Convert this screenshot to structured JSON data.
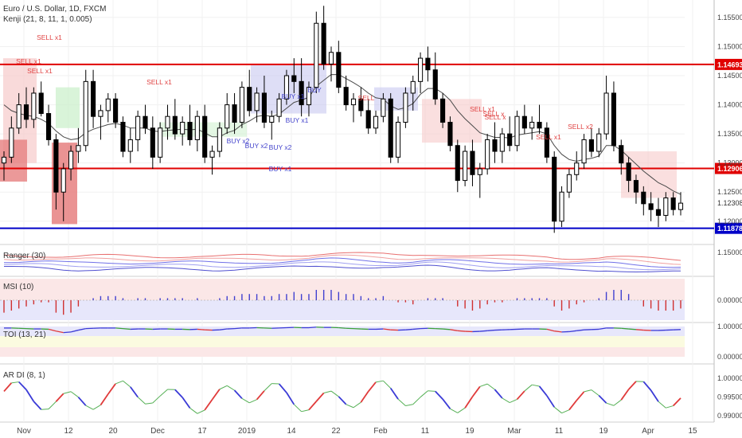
{
  "header": {
    "title": "Euro / U.S. Dollar, 1D, FXCM",
    "indicator": "Kenji (21, 8, 11, 1, 0.005)"
  },
  "panes": {
    "ranger": {
      "label": "Ranger (30)",
      "ticks": [
        "1.15000"
      ]
    },
    "msi": {
      "label": "MSI (10)",
      "ticks": [
        "0.00000"
      ]
    },
    "toi": {
      "label": "TOI (13, 21)",
      "ticks": [
        "1.00000",
        "0.00000"
      ]
    },
    "ardi": {
      "label": "AR DI (8, 1)",
      "ticks": [
        "1.00000",
        "0.99500",
        "0.99000"
      ]
    }
  },
  "colors": {
    "up_candle": "#ffffff",
    "down_candle": "#000000",
    "resistance": "#e00000",
    "support": "#0000c8",
    "price_tag_red": "#e00000",
    "price_tag_blue": "#0000c8",
    "buy": "#4444cc",
    "sell": "#e04444",
    "red_zone": "#f6caca",
    "green_zone": "#c9efc9",
    "blue_zone": "#c8c8f0"
  },
  "chart_data": {
    "type": "candlestick",
    "symbol": "EURUSD",
    "timeframe": "1D",
    "price_axis": {
      "ticks": [
        "1.15500",
        "1.15000",
        "1.14500",
        "1.14000",
        "1.13500",
        "1.13000",
        "1.12500",
        "1.12000"
      ],
      "ylim": [
        1.116,
        1.158
      ]
    },
    "time_axis": [
      "Nov",
      "12",
      "20",
      "Dec",
      "17",
      "2019",
      "14",
      "22",
      "Feb",
      "11",
      "19",
      "Mar",
      "11",
      "19",
      "Apr",
      "15"
    ],
    "levels": [
      {
        "value": 1.14693,
        "label": "1.14693",
        "color": "red"
      },
      {
        "value": 1.12906,
        "label": "1.12906",
        "color": "red"
      },
      {
        "value": 1.11878,
        "label": "1.11878",
        "color": "blue"
      }
    ],
    "last_price": {
      "value": 1.12308,
      "label": "1.12308"
    },
    "signals": [
      {
        "label": "SELL x1",
        "type": "sell"
      },
      {
        "label": "SELL x1",
        "type": "sell"
      },
      {
        "label": "SELL x1",
        "type": "sell"
      },
      {
        "label": "SELL x1",
        "type": "sell"
      },
      {
        "label": "BUY x2",
        "type": "buy"
      },
      {
        "label": "BUY x2",
        "type": "buy"
      },
      {
        "label": "BUY x1",
        "type": "buy"
      },
      {
        "label": "BUY x1",
        "type": "buy"
      },
      {
        "label": "BUY x2",
        "type": "buy"
      },
      {
        "label": "BUY x1",
        "type": "buy"
      },
      {
        "label": "BUY",
        "type": "buy"
      },
      {
        "label": "SELL",
        "type": "sell"
      },
      {
        "label": "SELL x1",
        "type": "sell"
      },
      {
        "label": "SELL x",
        "type": "sell"
      },
      {
        "label": "SELL x",
        "type": "sell"
      },
      {
        "label": "SELL x1",
        "type": "sell"
      },
      {
        "label": "SELL x2",
        "type": "sell"
      }
    ],
    "candles": [
      [
        1.13,
        1.132,
        1.127,
        1.131
      ],
      [
        1.131,
        1.138,
        1.13,
        1.136
      ],
      [
        1.136,
        1.142,
        1.135,
        1.14
      ],
      [
        1.14,
        1.143,
        1.136,
        1.1375
      ],
      [
        1.1375,
        1.143,
        1.136,
        1.142
      ],
      [
        1.142,
        1.144,
        1.138,
        1.1385
      ],
      [
        1.1385,
        1.14,
        1.133,
        1.134
      ],
      [
        1.134,
        1.135,
        1.122,
        1.125
      ],
      [
        1.125,
        1.13,
        1.12,
        1.129
      ],
      [
        1.129,
        1.133,
        1.127,
        1.132
      ],
      [
        1.132,
        1.136,
        1.13,
        1.133
      ],
      [
        1.133,
        1.146,
        1.132,
        1.144
      ],
      [
        1.144,
        1.146,
        1.136,
        1.138
      ],
      [
        1.138,
        1.14,
        1.134,
        1.139
      ],
      [
        1.139,
        1.142,
        1.137,
        1.141
      ],
      [
        1.141,
        1.142,
        1.136,
        1.137
      ],
      [
        1.137,
        1.138,
        1.131,
        1.132
      ],
      [
        1.132,
        1.136,
        1.13,
        1.134
      ],
      [
        1.134,
        1.139,
        1.132,
        1.138
      ],
      [
        1.138,
        1.14,
        1.135,
        1.136
      ],
      [
        1.136,
        1.138,
        1.129,
        1.131
      ],
      [
        1.131,
        1.137,
        1.13,
        1.136
      ],
      [
        1.136,
        1.14,
        1.134,
        1.138
      ],
      [
        1.138,
        1.141,
        1.134,
        1.135
      ],
      [
        1.135,
        1.138,
        1.133,
        1.137
      ],
      [
        1.137,
        1.14,
        1.133,
        1.134
      ],
      [
        1.134,
        1.139,
        1.132,
        1.138
      ],
      [
        1.138,
        1.14,
        1.13,
        1.131
      ],
      [
        1.131,
        1.133,
        1.128,
        1.132
      ],
      [
        1.132,
        1.137,
        1.131,
        1.136
      ],
      [
        1.136,
        1.142,
        1.135,
        1.14
      ],
      [
        1.14,
        1.142,
        1.135,
        1.137
      ],
      [
        1.137,
        1.144,
        1.136,
        1.143
      ],
      [
        1.143,
        1.146,
        1.138,
        1.139
      ],
      [
        1.139,
        1.143,
        1.137,
        1.142
      ],
      [
        1.142,
        1.145,
        1.136,
        1.137
      ],
      [
        1.137,
        1.139,
        1.134,
        1.138
      ],
      [
        1.138,
        1.142,
        1.137,
        1.141
      ],
      [
        1.141,
        1.146,
        1.14,
        1.145
      ],
      [
        1.145,
        1.148,
        1.142,
        1.144
      ],
      [
        1.144,
        1.148,
        1.138,
        1.14
      ],
      [
        1.14,
        1.144,
        1.138,
        1.143
      ],
      [
        1.143,
        1.156,
        1.142,
        1.154
      ],
      [
        1.154,
        1.157,
        1.146,
        1.147
      ],
      [
        1.147,
        1.15,
        1.144,
        1.149
      ],
      [
        1.149,
        1.151,
        1.142,
        1.143
      ],
      [
        1.143,
        1.145,
        1.139,
        1.14
      ],
      [
        1.14,
        1.142,
        1.137,
        1.141
      ],
      [
        1.141,
        1.143,
        1.138,
        1.139
      ],
      [
        1.139,
        1.141,
        1.135,
        1.136
      ],
      [
        1.136,
        1.139,
        1.135,
        1.138
      ],
      [
        1.138,
        1.142,
        1.137,
        1.141
      ],
      [
        1.141,
        1.142,
        1.13,
        1.131
      ],
      [
        1.131,
        1.138,
        1.13,
        1.137
      ],
      [
        1.137,
        1.143,
        1.136,
        1.142
      ],
      [
        1.142,
        1.145,
        1.139,
        1.144
      ],
      [
        1.144,
        1.149,
        1.142,
        1.148
      ],
      [
        1.148,
        1.15,
        1.144,
        1.146
      ],
      [
        1.146,
        1.149,
        1.14,
        1.141
      ],
      [
        1.141,
        1.142,
        1.136,
        1.137
      ],
      [
        1.137,
        1.138,
        1.132,
        1.133
      ],
      [
        1.133,
        1.134,
        1.125,
        1.127
      ],
      [
        1.127,
        1.133,
        1.126,
        1.132
      ],
      [
        1.132,
        1.134,
        1.126,
        1.128
      ],
      [
        1.128,
        1.13,
        1.124,
        1.129
      ],
      [
        1.129,
        1.135,
        1.128,
        1.134
      ],
      [
        1.134,
        1.137,
        1.13,
        1.132
      ],
      [
        1.132,
        1.136,
        1.13,
        1.135
      ],
      [
        1.135,
        1.138,
        1.132,
        1.133
      ],
      [
        1.133,
        1.139,
        1.132,
        1.138
      ],
      [
        1.138,
        1.14,
        1.135,
        1.136
      ],
      [
        1.136,
        1.138,
        1.134,
        1.137
      ],
      [
        1.137,
        1.14,
        1.135,
        1.136
      ],
      [
        1.136,
        1.137,
        1.13,
        1.131
      ],
      [
        1.131,
        1.132,
        1.118,
        1.12
      ],
      [
        1.12,
        1.126,
        1.119,
        1.125
      ],
      [
        1.125,
        1.129,
        1.124,
        1.128
      ],
      [
        1.128,
        1.132,
        1.127,
        1.13
      ],
      [
        1.13,
        1.135,
        1.129,
        1.134
      ],
      [
        1.134,
        1.136,
        1.131,
        1.132
      ],
      [
        1.132,
        1.136,
        1.131,
        1.135
      ],
      [
        1.135,
        1.145,
        1.134,
        1.142
      ],
      [
        1.142,
        1.144,
        1.132,
        1.133
      ],
      [
        1.133,
        1.134,
        1.128,
        1.13
      ],
      [
        1.13,
        1.131,
        1.125,
        1.127
      ],
      [
        1.127,
        1.128,
        1.123,
        1.125
      ],
      [
        1.125,
        1.126,
        1.121,
        1.123
      ],
      [
        1.123,
        1.125,
        1.12,
        1.122
      ],
      [
        1.122,
        1.124,
        1.119,
        1.121
      ],
      [
        1.121,
        1.125,
        1.12,
        1.124
      ],
      [
        1.124,
        1.125,
        1.121,
        1.122
      ],
      [
        1.122,
        1.125,
        1.121,
        1.1231
      ]
    ],
    "kenji_line": [
      1.14,
      1.139,
      1.1385,
      1.1382,
      1.138,
      1.1375,
      1.1368,
      1.1355,
      1.1345,
      1.134,
      1.1342,
      1.1352,
      1.1358,
      1.1362,
      1.1366,
      1.1368,
      1.1365,
      1.136,
      1.136,
      1.136,
      1.1355,
      1.1354,
      1.1356,
      1.1357,
      1.1358,
      1.1357,
      1.1358,
      1.1352,
      1.1345,
      1.1345,
      1.1352,
      1.1356,
      1.1366,
      1.1372,
      1.138,
      1.1382,
      1.138,
      1.1384,
      1.1394,
      1.1404,
      1.1408,
      1.1413,
      1.1432,
      1.1442,
      1.1452,
      1.1452,
      1.1445,
      1.1438,
      1.143,
      1.142,
      1.1412,
      1.141,
      1.1398,
      1.1392,
      1.1395,
      1.1402,
      1.1418,
      1.1428,
      1.1428,
      1.142,
      1.1408,
      1.139,
      1.1376,
      1.1364,
      1.1352,
      1.1348,
      1.1344,
      1.1344,
      1.1343,
      1.1348,
      1.135,
      1.1352,
      1.1354,
      1.135,
      1.133,
      1.1315,
      1.1306,
      1.1303,
      1.1306,
      1.1308,
      1.1312,
      1.133,
      1.133,
      1.1322,
      1.131,
      1.1298,
      1.1286,
      1.1276,
      1.1266,
      1.126,
      1.1252,
      1.1246
    ],
    "sub_panes": {
      "msi": [
        -0.6,
        -0.5,
        -0.4,
        -0.3,
        -0.2,
        -0.1,
        -0.1,
        -0.6,
        -0.7,
        -0.6,
        -0.3,
        0.0,
        0.1,
        0.2,
        0.2,
        0.2,
        0.1,
        0.0,
        0.1,
        0.1,
        0.0,
        0.1,
        0.1,
        0.1,
        0.1,
        0.0,
        0.1,
        0.0,
        0.0,
        0.1,
        0.2,
        0.2,
        0.3,
        0.3,
        0.3,
        0.2,
        0.2,
        0.3,
        0.3,
        0.4,
        0.3,
        0.3,
        0.5,
        0.5,
        0.5,
        0.4,
        0.3,
        0.3,
        0.2,
        0.1,
        0.1,
        0.2,
        0.0,
        -0.1,
        -0.1,
        -0.2,
        0.0,
        0.1,
        0.1,
        0.1,
        0.0,
        -0.3,
        -0.4,
        -0.5,
        -0.4,
        -0.2,
        -0.1,
        -0.1,
        0.0,
        0.1,
        0.1,
        0.1,
        0.1,
        0.1,
        -0.3,
        -0.5,
        -0.4,
        -0.2,
        -0.1,
        0.0,
        0.1,
        0.4,
        0.5,
        0.5,
        0.3,
        0.0,
        -0.3,
        -0.4,
        -0.5,
        -0.5,
        -0.5,
        -0.4
      ],
      "toi": [
        0.95,
        0.95,
        0.94,
        0.93,
        0.92,
        0.92,
        0.91,
        0.85,
        0.8,
        0.82,
        0.88,
        0.93,
        0.94,
        0.95,
        0.95,
        0.95,
        0.93,
        0.91,
        0.92,
        0.92,
        0.91,
        0.92,
        0.92,
        0.91,
        0.91,
        0.9,
        0.91,
        0.89,
        0.88,
        0.89,
        0.92,
        0.93,
        0.95,
        0.95,
        0.96,
        0.95,
        0.94,
        0.95,
        0.96,
        0.97,
        0.96,
        0.96,
        0.98,
        0.97,
        0.97,
        0.96,
        0.94,
        0.93,
        0.92,
        0.91,
        0.91,
        0.92,
        0.89,
        0.88,
        0.89,
        0.91,
        0.93,
        0.94,
        0.93,
        0.92,
        0.9,
        0.86,
        0.84,
        0.83,
        0.84,
        0.86,
        0.88,
        0.89,
        0.9,
        0.91,
        0.92,
        0.92,
        0.92,
        0.91,
        0.85,
        0.82,
        0.83,
        0.86,
        0.89,
        0.9,
        0.91,
        0.95,
        0.95,
        0.94,
        0.92,
        0.9,
        0.88,
        0.87,
        0.87,
        0.88,
        0.89,
        0.9
      ]
    }
  }
}
